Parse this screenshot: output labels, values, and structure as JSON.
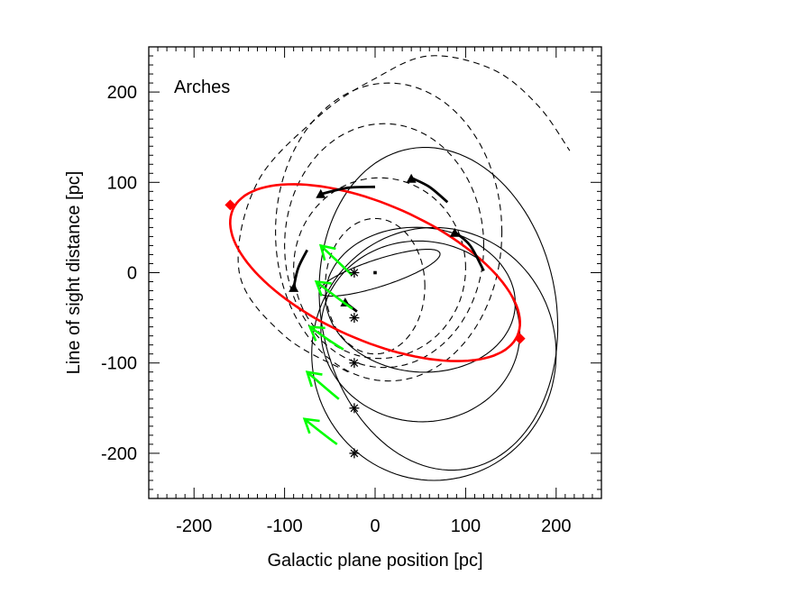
{
  "chart_data": {
    "type": "line",
    "annotation": "Arches",
    "xlabel": "Galactic plane position [pc]",
    "ylabel": "Line of sight distance [pc]",
    "xlim": [
      -250,
      250
    ],
    "ylim": [
      -250,
      250
    ],
    "xticks": [
      -200,
      -100,
      0,
      100,
      200
    ],
    "yticks": [
      -200,
      -100,
      0,
      100,
      200
    ],
    "grid": false,
    "colors": {
      "highlight": "#ff0000",
      "arrow": "#00ff00",
      "orbit": "#000000"
    },
    "dashed_orbits": [
      {
        "cx": 0,
        "cy": -15,
        "rx": 55,
        "ry": 75
      },
      {
        "cx": 5,
        "cy": 5,
        "rx": 95,
        "ry": 100
      },
      {
        "cx": 10,
        "cy": 30,
        "rx": 110,
        "ry": 135
      },
      {
        "cx": 15,
        "cy": 45,
        "rx": 125,
        "ry": 165
      }
    ],
    "open_dashed_arc": {
      "points": [
        [
          -30,
          -110
        ],
        [
          -100,
          -70
        ],
        [
          -150,
          0
        ],
        [
          -130,
          100
        ],
        [
          -60,
          175
        ],
        [
          0,
          215
        ],
        [
          60,
          240
        ],
        [
          130,
          225
        ],
        [
          180,
          185
        ],
        [
          215,
          135
        ]
      ]
    },
    "solid_orbits": [
      {
        "cx": 5,
        "cy": 0,
        "rx": 70,
        "ry": 15,
        "angle": 18
      },
      {
        "cx": 50,
        "cy": -30,
        "rx": 105,
        "ry": 80,
        "angle": -5
      },
      {
        "cx": 50,
        "cy": -65,
        "rx": 110,
        "ry": 100,
        "angle": -5
      },
      {
        "cx": 65,
        "cy": -90,
        "rx": 135,
        "ry": 140,
        "angle": 0
      },
      {
        "cx": 70,
        "cy": -40,
        "rx": 130,
        "ry": 180,
        "angle": 10
      }
    ],
    "highlighted_orbit": {
      "cx": 0,
      "cy": 0,
      "rx": 172,
      "ry": 75,
      "angle": -24,
      "endpoints": [
        [
          -160,
          75
        ],
        [
          160,
          -73
        ]
      ]
    },
    "thick_segments": [
      {
        "points": [
          [
            -60,
            87
          ],
          [
            -30,
            94
          ],
          [
            0,
            95
          ]
        ]
      },
      {
        "points": [
          [
            40,
            105
          ],
          [
            60,
            95
          ],
          [
            80,
            78
          ]
        ]
      },
      {
        "points": [
          [
            -90,
            -17
          ],
          [
            -85,
            5
          ],
          [
            -75,
            25
          ]
        ]
      },
      {
        "points": [
          [
            -33,
            -33
          ],
          [
            -20,
            -43
          ]
        ]
      },
      {
        "points": [
          [
            88,
            45
          ],
          [
            105,
            30
          ],
          [
            120,
            2
          ]
        ]
      }
    ],
    "triangles": [
      [
        -60,
        87
      ],
      [
        40,
        104
      ],
      [
        -90,
        -17
      ],
      [
        -33,
        -33
      ],
      [
        88,
        44
      ]
    ],
    "start_points": [
      [
        -23,
        0
      ],
      [
        -23,
        -50
      ],
      [
        -23,
        -100
      ],
      [
        -23,
        -150
      ],
      [
        -23,
        -200
      ]
    ],
    "center_point": [
      0,
      0
    ],
    "green_arrows": [
      {
        "from": [
          -25,
          -3
        ],
        "to": [
          -60,
          30
        ]
      },
      {
        "from": [
          -25,
          -40
        ],
        "to": [
          -65,
          -10
        ]
      },
      {
        "from": [
          -35,
          -85
        ],
        "to": [
          -72,
          -60
        ]
      },
      {
        "from": [
          -40,
          -140
        ],
        "to": [
          -75,
          -110
        ]
      },
      {
        "from": [
          -42,
          -190
        ],
        "to": [
          -78,
          -162
        ]
      }
    ]
  }
}
